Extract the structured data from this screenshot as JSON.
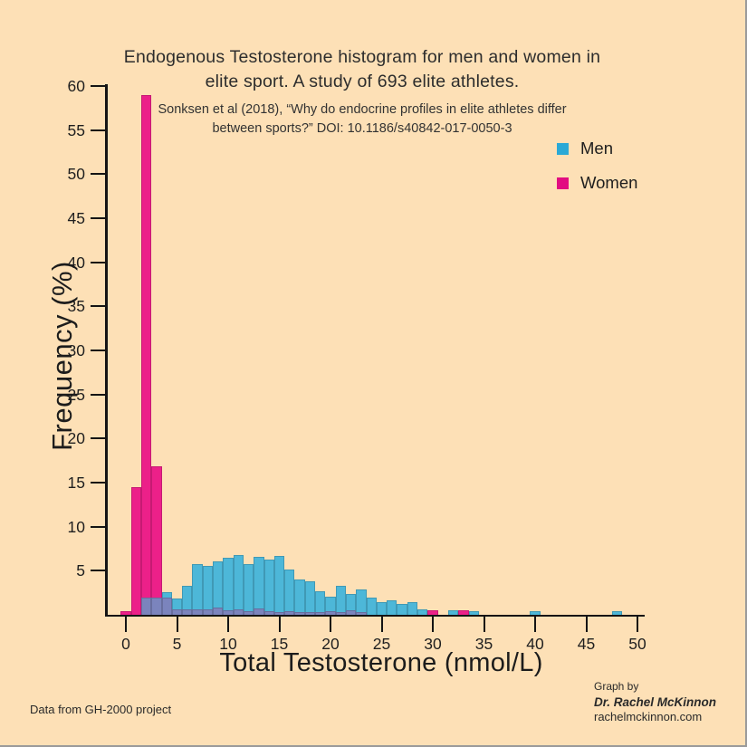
{
  "header": {
    "title": "Endogenous Testosterone histogram for men and women in elite sport. A study of 693 elite athletes.",
    "subtitle": "Sonksen et al (2018), “Why do endocrine profiles in elite athletes differ between sports?” DOI: 10.1186/s40842-017-0050-3"
  },
  "legend": {
    "items": [
      {
        "label": "Men",
        "color": "#2aa9d6"
      },
      {
        "label": "Women",
        "color": "#e20d81"
      }
    ]
  },
  "colors": {
    "background": "#fde0b6",
    "men_bar": "#4db7d8",
    "women_bar": "#ec2089",
    "overlap_bar": "#7b84bd",
    "axis": "#141414"
  },
  "chart_data": {
    "type": "bar",
    "subtype": "histogram",
    "title": "Endogenous Testosterone histogram for men and women in elite sport. A study of 693 elite athletes.",
    "xlabel": "Total Testosterone (nmol/L)",
    "ylabel": "Frequency (%)",
    "xlim": [
      0,
      50
    ],
    "ylim": [
      0,
      60
    ],
    "x_ticks": [
      0,
      5,
      10,
      15,
      20,
      25,
      30,
      35,
      40,
      45,
      50
    ],
    "y_ticks": [
      5,
      10,
      15,
      20,
      25,
      30,
      35,
      40,
      45,
      50,
      55,
      60
    ],
    "grid": false,
    "legend_position": "upper-right",
    "bin_width": 1,
    "bin_centers": [
      0,
      1,
      2,
      3,
      4,
      5,
      6,
      7,
      8,
      9,
      10,
      11,
      12,
      13,
      14,
      15,
      16,
      17,
      18,
      19,
      20,
      21,
      22,
      23,
      24,
      25,
      26,
      27,
      28,
      29,
      30,
      31,
      32,
      33,
      34,
      35,
      36,
      37,
      38,
      39,
      40,
      41,
      42,
      43,
      44,
      45,
      46,
      47,
      48,
      49
    ],
    "series": [
      {
        "name": "Men",
        "color": "#4db7d8",
        "values": [
          0,
          0,
          2.0,
          2.0,
          2.6,
          1.9,
          3.3,
          5.8,
          5.5,
          6.1,
          6.5,
          6.8,
          5.8,
          6.6,
          6.3,
          6.7,
          5.1,
          4.0,
          3.8,
          2.7,
          2.1,
          3.3,
          2.4,
          2.9,
          2.0,
          1.4,
          1.6,
          1.2,
          1.4,
          0.6,
          0,
          0,
          0.5,
          0,
          0.4,
          0,
          0,
          0,
          0,
          0,
          0.4,
          0,
          0,
          0,
          0,
          0,
          0,
          0,
          0.4,
          0
        ]
      },
      {
        "name": "Women",
        "color": "#ec2089",
        "values": [
          0.4,
          14.5,
          59,
          16.8,
          2.0,
          0.6,
          0.6,
          0.6,
          0.6,
          0.8,
          0.5,
          0.6,
          0.4,
          0.7,
          0.4,
          0.3,
          0.4,
          0.3,
          0.3,
          0.3,
          0.4,
          0.3,
          0.5,
          0.3,
          0,
          0,
          0,
          0,
          0,
          0,
          0.5,
          0,
          0,
          0.5,
          0,
          0,
          0,
          0,
          0,
          0,
          0,
          0,
          0,
          0,
          0,
          0,
          0,
          0,
          0,
          0
        ]
      }
    ]
  },
  "footer": {
    "left": "Data from GH-2000 project",
    "credit_line1": "Graph by",
    "credit_line2": "Dr. Rachel McKinnon",
    "credit_line3": "rachelmckinnon.com"
  }
}
